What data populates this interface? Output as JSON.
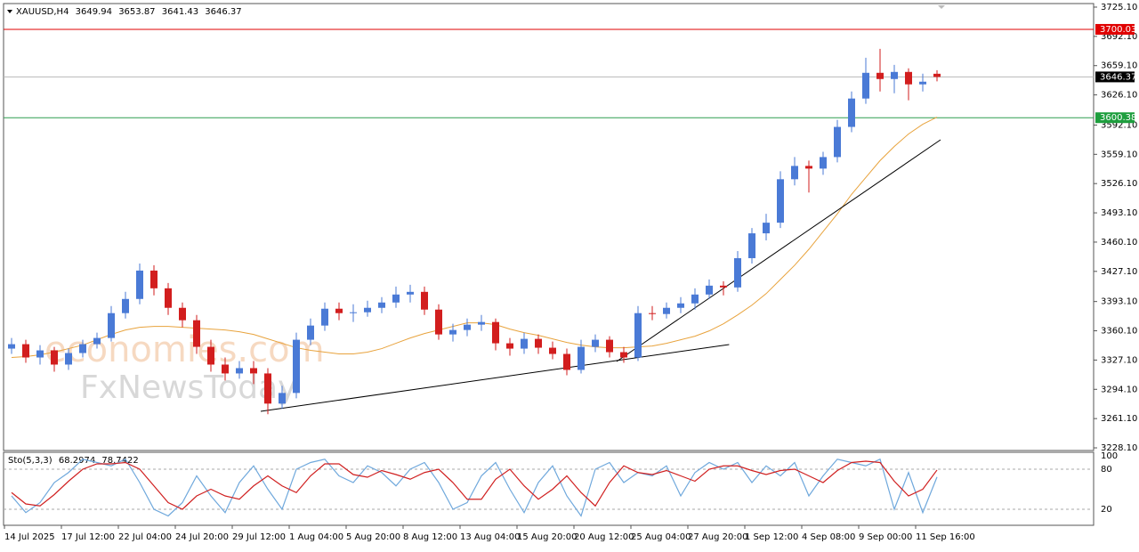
{
  "chart_data": [
    {
      "type": "candlestick",
      "title": "XAUUSD,H4",
      "categories": [
        "14 Jul 2025",
        null,
        null,
        null,
        "17 Jul 12:00",
        null,
        null,
        null,
        "22 Jul 04:00",
        null,
        null,
        null,
        "24 Jul 20:00",
        null,
        null,
        null,
        "29 Jul 12:00",
        null,
        null,
        null,
        "1 Aug 04:00",
        null,
        null,
        null,
        "5 Aug 20:00",
        null,
        null,
        null,
        "8 Aug 12:00",
        null,
        null,
        null,
        "13 Aug 04:00",
        null,
        null,
        null,
        "15 Aug 20:00",
        null,
        null,
        null,
        "20 Aug 12:00",
        null,
        null,
        null,
        "25 Aug 04:00",
        null,
        null,
        null,
        "27 Aug 20:00",
        null,
        null,
        null,
        "1 Sep 12:00",
        null,
        null,
        null,
        "4 Sep 08:00",
        null,
        null,
        null,
        "9 Sep 00:00",
        null,
        null,
        null,
        "11 Sep 16:00",
        null
      ],
      "ohlc": [
        [
          3340,
          3352,
          3334,
          3345
        ],
        [
          3345,
          3350,
          3324,
          3330
        ],
        [
          3330,
          3344,
          3322,
          3338
        ],
        [
          3338,
          3342,
          3314,
          3322
        ],
        [
          3322,
          3340,
          3316,
          3335
        ],
        [
          3335,
          3350,
          3330,
          3345
        ],
        [
          3345,
          3358,
          3340,
          3352
        ],
        [
          3352,
          3388,
          3348,
          3380
        ],
        [
          3380,
          3404,
          3374,
          3396
        ],
        [
          3396,
          3436,
          3390,
          3428
        ],
        [
          3428,
          3434,
          3400,
          3408
        ],
        [
          3408,
          3414,
          3378,
          3386
        ],
        [
          3386,
          3392,
          3364,
          3372
        ],
        [
          3372,
          3378,
          3334,
          3342
        ],
        [
          3342,
          3350,
          3314,
          3322
        ],
        [
          3322,
          3330,
          3304,
          3312
        ],
        [
          3312,
          3326,
          3306,
          3318
        ],
        [
          3318,
          3326,
          3300,
          3312
        ],
        [
          3312,
          3318,
          3266,
          3278
        ],
        [
          3278,
          3298,
          3272,
          3290
        ],
        [
          3290,
          3358,
          3284,
          3350
        ],
        [
          3350,
          3374,
          3344,
          3366
        ],
        [
          3366,
          3392,
          3360,
          3385
        ],
        [
          3385,
          3392,
          3372,
          3380
        ],
        [
          3380,
          3390,
          3370,
          3381
        ],
        [
          3381,
          3394,
          3376,
          3386
        ],
        [
          3386,
          3398,
          3380,
          3392
        ],
        [
          3392,
          3410,
          3386,
          3401
        ],
        [
          3401,
          3412,
          3392,
          3404
        ],
        [
          3404,
          3410,
          3378,
          3384
        ],
        [
          3384,
          3390,
          3350,
          3356
        ],
        [
          3356,
          3368,
          3348,
          3361
        ],
        [
          3361,
          3374,
          3354,
          3367
        ],
        [
          3367,
          3378,
          3360,
          3370
        ],
        [
          3370,
          3374,
          3338,
          3346
        ],
        [
          3346,
          3352,
          3332,
          3340
        ],
        [
          3340,
          3358,
          3334,
          3351
        ],
        [
          3351,
          3356,
          3334,
          3341
        ],
        [
          3341,
          3348,
          3328,
          3334
        ],
        [
          3334,
          3340,
          3310,
          3316
        ],
        [
          3316,
          3350,
          3312,
          3342
        ],
        [
          3342,
          3356,
          3336,
          3350
        ],
        [
          3350,
          3354,
          3330,
          3336
        ],
        [
          3336,
          3342,
          3324,
          3330
        ],
        [
          3330,
          3388,
          3326,
          3380
        ],
        [
          3380,
          3388,
          3372,
          3379
        ],
        [
          3379,
          3392,
          3374,
          3386
        ],
        [
          3386,
          3398,
          3380,
          3391
        ],
        [
          3391,
          3408,
          3384,
          3401
        ],
        [
          3401,
          3418,
          3396,
          3411
        ],
        [
          3411,
          3416,
          3400,
          3409
        ],
        [
          3409,
          3450,
          3404,
          3442
        ],
        [
          3442,
          3476,
          3436,
          3470
        ],
        [
          3470,
          3492,
          3462,
          3482
        ],
        [
          3482,
          3540,
          3476,
          3531
        ],
        [
          3531,
          3556,
          3524,
          3546
        ],
        [
          3546,
          3552,
          3516,
          3543
        ],
        [
          3543,
          3562,
          3536,
          3556
        ],
        [
          3556,
          3598,
          3550,
          3590
        ],
        [
          3590,
          3630,
          3584,
          3622
        ],
        [
          3622,
          3668,
          3616,
          3651
        ],
        [
          3651,
          3678,
          3630,
          3644
        ],
        [
          3644,
          3660,
          3628,
          3652
        ],
        [
          3652,
          3656,
          3620,
          3638
        ],
        [
          3638,
          3650,
          3630,
          3641
        ],
        [
          3649.94,
          3653.87,
          3641.43,
          3646.37
        ]
      ],
      "colors": {
        "up": "#4a7ad6",
        "down": "#d21e1e"
      },
      "ma": {
        "color": "#e8a33d",
        "values": [
          3330,
          3331,
          3333,
          3336,
          3340,
          3344,
          3350,
          3356,
          3361,
          3364,
          3365,
          3365,
          3364,
          3363,
          3362,
          3361,
          3359,
          3356,
          3351,
          3346,
          3341,
          3338,
          3336,
          3334,
          3334,
          3336,
          3340,
          3346,
          3352,
          3357,
          3361,
          3365,
          3369,
          3369,
          3367,
          3362,
          3358,
          3355,
          3351,
          3347,
          3344,
          3342,
          3341,
          3341,
          3342,
          3343,
          3346,
          3350,
          3354,
          3360,
          3368,
          3378,
          3389,
          3402,
          3418,
          3434,
          3452,
          3472,
          3492,
          3514,
          3533,
          3552,
          3568,
          3582,
          3593,
          3601
        ]
      },
      "levels": [
        {
          "value": 3700.03,
          "color": "#e00000",
          "label_color": "#e00000"
        },
        {
          "value": 3646.37,
          "color": "#b8b8b8",
          "label_color": "#000000"
        },
        {
          "value": 3600.38,
          "color": "#2e9e50",
          "label_color": "#1e9e3e"
        }
      ],
      "trendlines": [
        {
          "start": [
            17.5,
            3269.3
          ],
          "end": [
            50.4,
            3344.6
          ]
        },
        {
          "start": [
            42.5,
            3325.5
          ],
          "end": [
            65.25,
            3575.5
          ]
        }
      ],
      "watermark": [
        "economies.com",
        "FxNewsToday"
      ],
      "ylim": [
        3224.1,
        3729.1
      ],
      "yticks": [
        {
          "value": 3725.1,
          "label": "3725.10"
        },
        {
          "value": 3692.1,
          "label": "3692.10"
        },
        {
          "value": 3659.1,
          "label": "3659.10"
        },
        {
          "value": 3626.1,
          "label": "3626.10"
        },
        {
          "value": 3592.1,
          "label": "3592.10"
        },
        {
          "value": 3559.1,
          "label": "3559.10"
        },
        {
          "value": 3526.1,
          "label": "3526.10"
        },
        {
          "value": 3493.1,
          "label": "3493.10"
        },
        {
          "value": 3460.1,
          "label": "3460.10"
        },
        {
          "value": 3427.1,
          "label": "3427.10"
        },
        {
          "value": 3393.1,
          "label": "3393.10"
        },
        {
          "value": 3360.1,
          "label": "3360.10"
        },
        {
          "value": 3327.1,
          "label": "3327.10"
        },
        {
          "value": 3294.1,
          "label": "3294.10"
        },
        {
          "value": 3261.1,
          "label": "3261.10"
        },
        {
          "value": 3228.1,
          "label": "3228.10"
        }
      ]
    },
    {
      "type": "stochastic",
      "title": "Sto(5,3,3)",
      "series": [
        {
          "color": "#6fa8dc",
          "values": [
            40,
            15,
            30,
            60,
            75,
            95,
            90,
            85,
            95,
            60,
            20,
            10,
            30,
            70,
            40,
            15,
            60,
            85,
            50,
            20,
            80,
            90,
            95,
            70,
            60,
            85,
            75,
            55,
            80,
            90,
            60,
            20,
            30,
            70,
            90,
            50,
            15,
            60,
            85,
            40,
            10,
            80,
            90,
            60,
            75,
            70,
            85,
            40,
            75,
            90,
            80,
            90,
            60,
            85,
            70,
            90,
            40,
            70,
            95,
            90,
            85,
            95,
            20,
            75,
            15,
            68.2974
          ]
        },
        {
          "color": "#d02020",
          "values": [
            45,
            28,
            25,
            42,
            62,
            80,
            88,
            88,
            90,
            80,
            55,
            30,
            20,
            40,
            50,
            40,
            35,
            55,
            70,
            55,
            45,
            70,
            88,
            88,
            72,
            68,
            78,
            72,
            65,
            75,
            80,
            60,
            35,
            35,
            65,
            80,
            55,
            35,
            50,
            70,
            45,
            25,
            60,
            85,
            75,
            72,
            78,
            70,
            62,
            80,
            85,
            85,
            78,
            72,
            78,
            80,
            70,
            60,
            78,
            90,
            92,
            90,
            62,
            40,
            50,
            78.7422
          ]
        }
      ],
      "ylim": [
        0,
        100
      ],
      "yticks": [
        100,
        80,
        20
      ]
    }
  ]
}
